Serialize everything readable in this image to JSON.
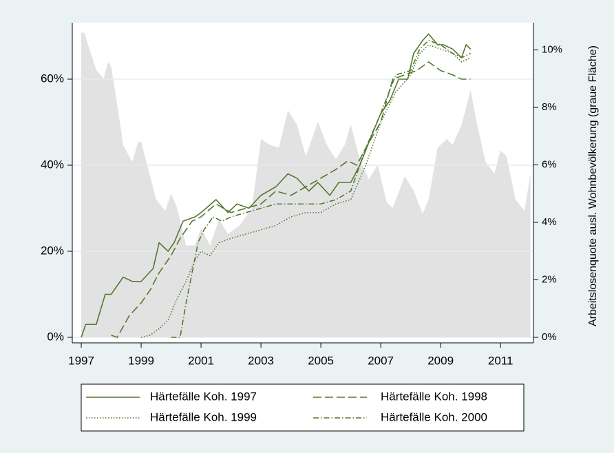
{
  "chart_data": {
    "type": "line",
    "y2label": "Arbeitslosenquote ausl. Wohnbevölkerung (graue Fläche)",
    "xlim": [
      1996.7,
      2012.1
    ],
    "xticks": [
      1997,
      1999,
      2001,
      2003,
      2005,
      2007,
      2009,
      2011
    ],
    "ylim": [
      0,
      72.8
    ],
    "yticks": [
      {
        "value": 0,
        "label": "0%"
      },
      {
        "value": 20,
        "label": "20%"
      },
      {
        "value": 40,
        "label": "40%"
      },
      {
        "value": 60,
        "label": "60%"
      }
    ],
    "y2lim": [
      0,
      10.9
    ],
    "y2ticks": [
      {
        "value": 0,
        "label": "0%"
      },
      {
        "value": 2,
        "label": "2%"
      },
      {
        "value": 4,
        "label": "4%"
      },
      {
        "value": 6,
        "label": "6%"
      },
      {
        "value": 8,
        "label": "8%"
      },
      {
        "value": 10,
        "label": "10%"
      }
    ],
    "grid": true,
    "legend": "bottom",
    "series": [
      {
        "type": "area",
        "axis": "y2",
        "color": "#e2e2e2",
        "x": [
          1997.0,
          1997.1,
          1997.5,
          1997.75,
          1997.9,
          1998.0,
          1998.2,
          1998.4,
          1998.7,
          1998.9,
          1999.0,
          1999.2,
          1999.5,
          1999.8,
          2000.0,
          2000.2,
          2000.5,
          2000.8,
          2001.0,
          2001.3,
          2001.6,
          2001.9,
          2002.3,
          2002.7,
          2003.0,
          2003.3,
          2003.6,
          2003.9,
          2004.2,
          2004.5,
          2004.9,
          2005.2,
          2005.5,
          2005.8,
          2006.0,
          2006.3,
          2006.6,
          2006.9,
          2007.2,
          2007.4,
          2007.8,
          2008.1,
          2008.4,
          2008.6,
          2008.9,
          2009.2,
          2009.4,
          2009.7,
          2010.0,
          2010.2,
          2010.5,
          2010.8,
          2011.0,
          2011.2,
          2011.5,
          2011.8,
          2012.0
        ],
        "values": [
          10.6,
          10.6,
          9.3,
          9.0,
          9.6,
          9.4,
          8.1,
          6.7,
          6.1,
          6.8,
          6.8,
          6.0,
          4.8,
          4.4,
          5.0,
          4.5,
          3.2,
          3.2,
          3.8,
          3.2,
          4.1,
          3.6,
          3.9,
          4.5,
          6.9,
          6.7,
          6.6,
          7.9,
          7.4,
          6.3,
          7.5,
          6.7,
          6.2,
          6.7,
          7.4,
          6.2,
          5.5,
          6.0,
          4.7,
          4.5,
          5.6,
          5.1,
          4.3,
          4.8,
          6.6,
          6.9,
          6.7,
          7.4,
          8.6,
          7.5,
          6.1,
          5.7,
          6.5,
          6.3,
          4.8,
          4.4,
          5.7
        ]
      },
      {
        "name": "Härtefälle Koh. 1997",
        "color": "#55772f",
        "dash": "solid",
        "x": [
          1997.0,
          1997.15,
          1997.5,
          1997.8,
          1998.0,
          1998.4,
          1998.7,
          1999.0,
          1999.4,
          1999.6,
          1999.9,
          2000.1,
          2000.4,
          2000.8,
          2001.0,
          2001.5,
          2001.9,
          2002.2,
          2002.6,
          2003.0,
          2003.5,
          2003.9,
          2004.2,
          2004.6,
          2004.9,
          2005.3,
          2005.6,
          2006.0,
          2006.3,
          2006.7,
          2007.0,
          2007.3,
          2007.6,
          2007.9,
          2008.1,
          2008.4,
          2008.6,
          2008.9,
          2009.1,
          2009.4,
          2009.7,
          2009.85,
          2010.0
        ],
        "values": [
          0,
          3,
          3,
          10,
          10,
          14,
          13,
          13,
          16,
          22,
          20,
          22,
          27,
          28,
          29,
          32,
          29,
          31,
          30,
          33,
          35,
          38,
          37,
          34,
          36,
          33,
          36,
          36,
          40,
          47,
          52,
          55,
          60,
          60,
          66,
          69,
          70.5,
          68,
          68,
          67,
          65,
          68,
          67
        ]
      },
      {
        "name": "Härtefälle Koh. 1998",
        "color": "#55772f",
        "dash": "dashed",
        "x": [
          1998.0,
          1998.2,
          1998.6,
          1999.0,
          1999.3,
          1999.6,
          2000.0,
          2000.3,
          2000.7,
          2001.0,
          2001.5,
          2002.0,
          2002.5,
          2003.0,
          2003.5,
          2004.0,
          2004.5,
          2005.0,
          2005.5,
          2005.9,
          2006.2,
          2006.5,
          2007.0,
          2007.4,
          2007.8,
          2008.2,
          2008.6,
          2009.0,
          2009.4,
          2009.7,
          2010.0
        ],
        "values": [
          0.5,
          0,
          5,
          8,
          11,
          15,
          19,
          23,
          27,
          28,
          31,
          29,
          30,
          31,
          34,
          33,
          35,
          37,
          39,
          41,
          40,
          44,
          50,
          60,
          61,
          62,
          64,
          62,
          61,
          60,
          60
        ]
      },
      {
        "name": "Härtefälle Koh. 1999",
        "color": "#55772f",
        "dash": "dotted",
        "x": [
          1999.0,
          1999.3,
          1999.6,
          1999.9,
          2000.2,
          2000.5,
          2000.8,
          2001.0,
          2001.3,
          2001.6,
          2002.0,
          2002.5,
          2003.0,
          2003.5,
          2004.0,
          2004.5,
          2005.0,
          2005.5,
          2006.0,
          2006.5,
          2007.0,
          2007.5,
          2008.0,
          2008.3,
          2008.6,
          2009.0,
          2009.4,
          2009.7,
          2010.0
        ],
        "values": [
          0,
          0.5,
          2,
          4,
          9,
          13,
          18,
          20,
          19,
          22,
          23,
          24,
          25,
          26,
          28,
          29,
          29,
          31,
          32,
          40,
          50,
          57,
          61,
          66,
          68,
          67,
          66,
          64,
          65
        ]
      },
      {
        "name": "Härtefälle Koh. 2000",
        "color": "#55772f",
        "dash": "dashdot",
        "x": [
          2000.0,
          2000.3,
          2000.5,
          2000.7,
          2000.9,
          2001.1,
          2001.4,
          2001.7,
          2002.0,
          2002.5,
          2003.0,
          2003.5,
          2004.0,
          2004.5,
          2005.0,
          2005.5,
          2006.0,
          2006.5,
          2007.0,
          2007.5,
          2008.0,
          2008.3,
          2008.6,
          2009.0,
          2009.4,
          2009.7,
          2010.0
        ],
        "values": [
          0,
          0,
          8,
          15,
          22,
          25,
          28,
          27,
          28,
          29,
          30,
          31,
          31,
          31,
          31,
          32,
          34,
          44,
          52,
          61,
          62,
          67,
          69,
          68,
          66,
          65,
          66
        ]
      }
    ]
  }
}
